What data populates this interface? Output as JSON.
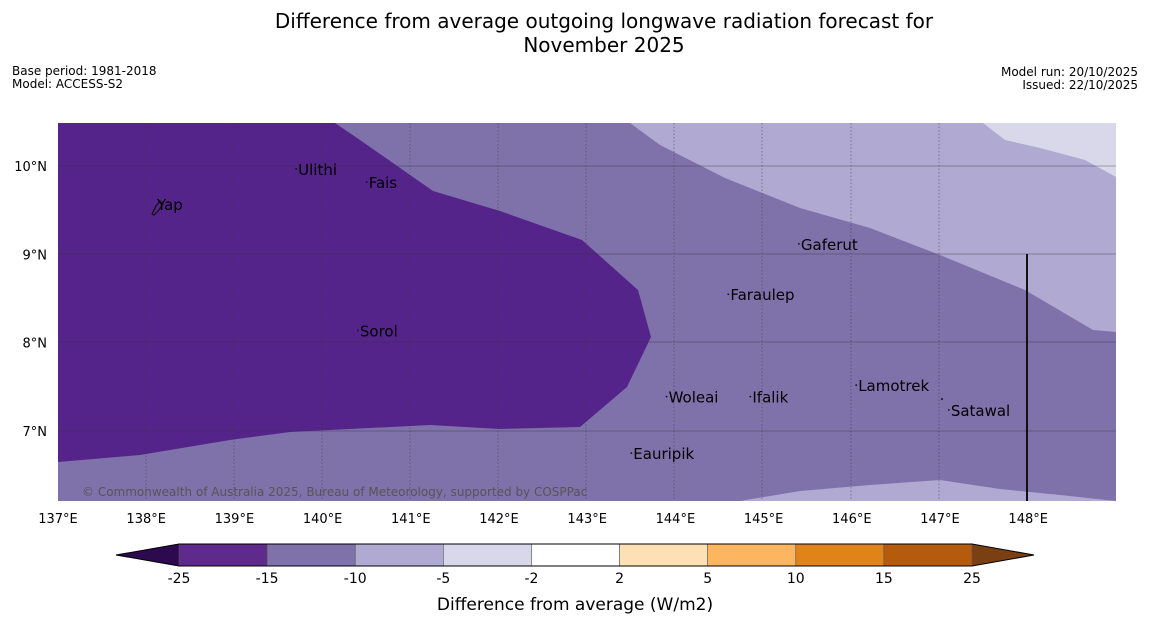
{
  "title_line1": "Difference from average outgoing longwave radiation forecast for",
  "title_line2": "November 2025",
  "base_period": "Base period: 1981-2018",
  "model": "Model: ACCESS-S2",
  "model_run": "Model run: 20/10/2025",
  "issued": "Issued: 22/10/2025",
  "copyright": "© Commonwealth of Australia 2025, Bureau of Meteorology, supported by COSPPac",
  "lon_ticks": [
    "137°E",
    "138°E",
    "139°E",
    "140°E",
    "141°E",
    "142°E",
    "143°E",
    "144°E",
    "145°E",
    "146°E",
    "147°E",
    "148°E"
  ],
  "lat_ticks": [
    "10°N",
    "9°N",
    "8°N",
    "7°N"
  ],
  "places": [
    {
      "name": "Yap",
      "lon": 138.1,
      "lat": 9.5
    },
    {
      "name": "Ulithi",
      "lon": 139.7,
      "lat": 9.9
    },
    {
      "name": "Fais",
      "lon": 140.5,
      "lat": 9.75
    },
    {
      "name": "Sorol",
      "lon": 140.4,
      "lat": 8.07
    },
    {
      "name": "Gaferut",
      "lon": 145.4,
      "lat": 9.05
    },
    {
      "name": "Faraulep",
      "lon": 144.6,
      "lat": 8.48
    },
    {
      "name": "Woleai",
      "lon": 143.9,
      "lat": 7.32
    },
    {
      "name": "Ifalik",
      "lon": 144.85,
      "lat": 7.32
    },
    {
      "name": "Lamotrek",
      "lon": 146.05,
      "lat": 7.45
    },
    {
      "name": "Satawal",
      "lon": 147.1,
      "lat": 7.17
    },
    {
      "name": "Eauripik",
      "lon": 143.5,
      "lat": 6.68
    }
  ],
  "colorbar": {
    "label": "Difference from average (W/m2)",
    "ticks": [
      "-25",
      "-15",
      "-10",
      "-5",
      "-2",
      "2",
      "5",
      "10",
      "15",
      "25"
    ],
    "colors": [
      "#5e2a8c",
      "#7f72ab",
      "#b0a9d2",
      "#d8d8ea",
      "#ffffff",
      "#fde0b4",
      "#fcb660",
      "#e08318",
      "#b55b0c"
    ],
    "under_color": "#2d0a4f",
    "over_color": "#7b4012"
  },
  "legend_colors": {
    "deep": "#55248a",
    "mid": "#7f72ab",
    "light": "#b0a9d2",
    "pale": "#d8d8ea"
  }
}
